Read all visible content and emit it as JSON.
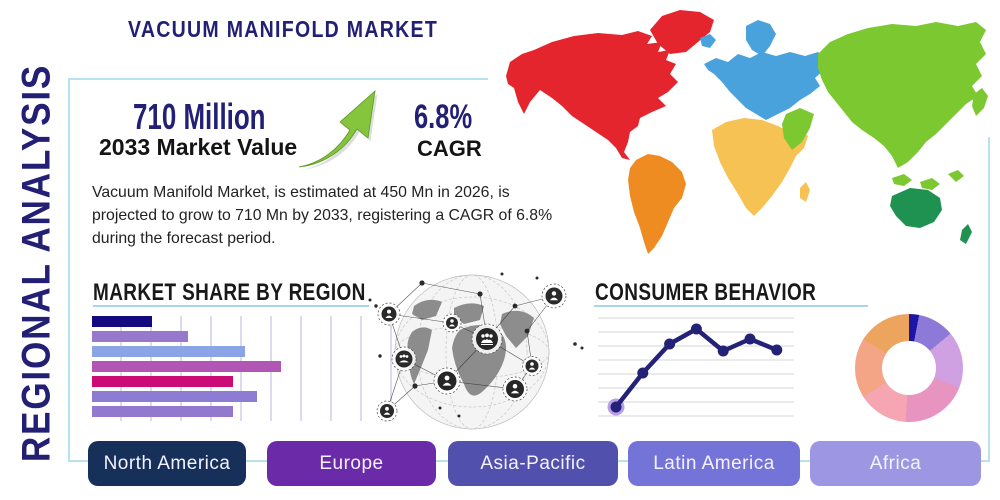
{
  "header": {
    "title": "VACUUM MANIFOLD MARKET",
    "side_label": "REGIONAL ANALYSIS"
  },
  "stats": {
    "market_value": "710 Million",
    "market_value_label": "2033 Market Value",
    "cagr_value": "6.8%",
    "cagr_label": "CAGR",
    "arrow_icon": "growth-arrow-up-right",
    "arrow_color": "#85c43d"
  },
  "description": "Vacuum Manifold Market, is estimated at 450 Mn in 2026, is projected to grow to 710 Mn by 2033, registering a CAGR of 6.8% during the forecast period.",
  "accent_colors": {
    "navy_text": "#221f74",
    "frame_border": "#b9e2f1",
    "heading_underline": "#a9d6e9"
  },
  "map": {
    "name": "world-map-colored-by-region",
    "continents": [
      {
        "name": "north-america",
        "color": "#e5252e"
      },
      {
        "name": "south-america",
        "color": "#ef8c21"
      },
      {
        "name": "europe",
        "color": "#4aa2dc"
      },
      {
        "name": "africa",
        "color": "#f6c253"
      },
      {
        "name": "asia",
        "color": "#7cc831"
      },
      {
        "name": "oceania",
        "color": "#1f9150"
      }
    ]
  },
  "chart_data": [
    {
      "type": "bar",
      "orientation": "horizontal",
      "title": "MARKET SHARE BY REGION",
      "values": [
        20,
        32,
        51,
        63,
        47,
        55,
        47
      ],
      "xlim": [
        0,
        100
      ],
      "colors": [
        "#140a80",
        "#9878cc",
        "#8aa4e6",
        "#b156b4",
        "#cb0b76",
        "#8e7cd4",
        "#9478ce"
      ],
      "grid": "vertical"
    },
    {
      "type": "line",
      "title": "CONSUMER BEHAVIOR",
      "x": [
        1,
        2,
        3,
        4,
        5,
        6,
        7
      ],
      "values": [
        1.3,
        4.7,
        7.6,
        9.1,
        6.9,
        8.1,
        7.0
      ],
      "ylim": [
        0,
        10
      ],
      "line_color": "#232277",
      "point_color": "#232277",
      "first_point_halo_color": "#b7a0e6",
      "grid": "horizontal"
    },
    {
      "type": "pie",
      "donut": true,
      "slices": [
        {
          "value": 3,
          "color": "#1b16a3"
        },
        {
          "value": 11,
          "color": "#8d7ad8"
        },
        {
          "value": 17,
          "color": "#cfa0e2"
        },
        {
          "value": 20,
          "color": "#e794c0"
        },
        {
          "value": 15,
          "color": "#f5a6b2"
        },
        {
          "value": 18,
          "color": "#f4a585"
        },
        {
          "value": 16,
          "color": "#eca45e"
        }
      ]
    }
  ],
  "region_buttons": [
    {
      "label": "North America",
      "color": "#17305a"
    },
    {
      "label": "Europe",
      "color": "#6b2aa7"
    },
    {
      "label": "Asia-Pacific",
      "color": "#5150ad"
    },
    {
      "label": "Latin America",
      "color": "#7473d8"
    },
    {
      "label": "Africa",
      "color": "#9d97e3"
    }
  ]
}
